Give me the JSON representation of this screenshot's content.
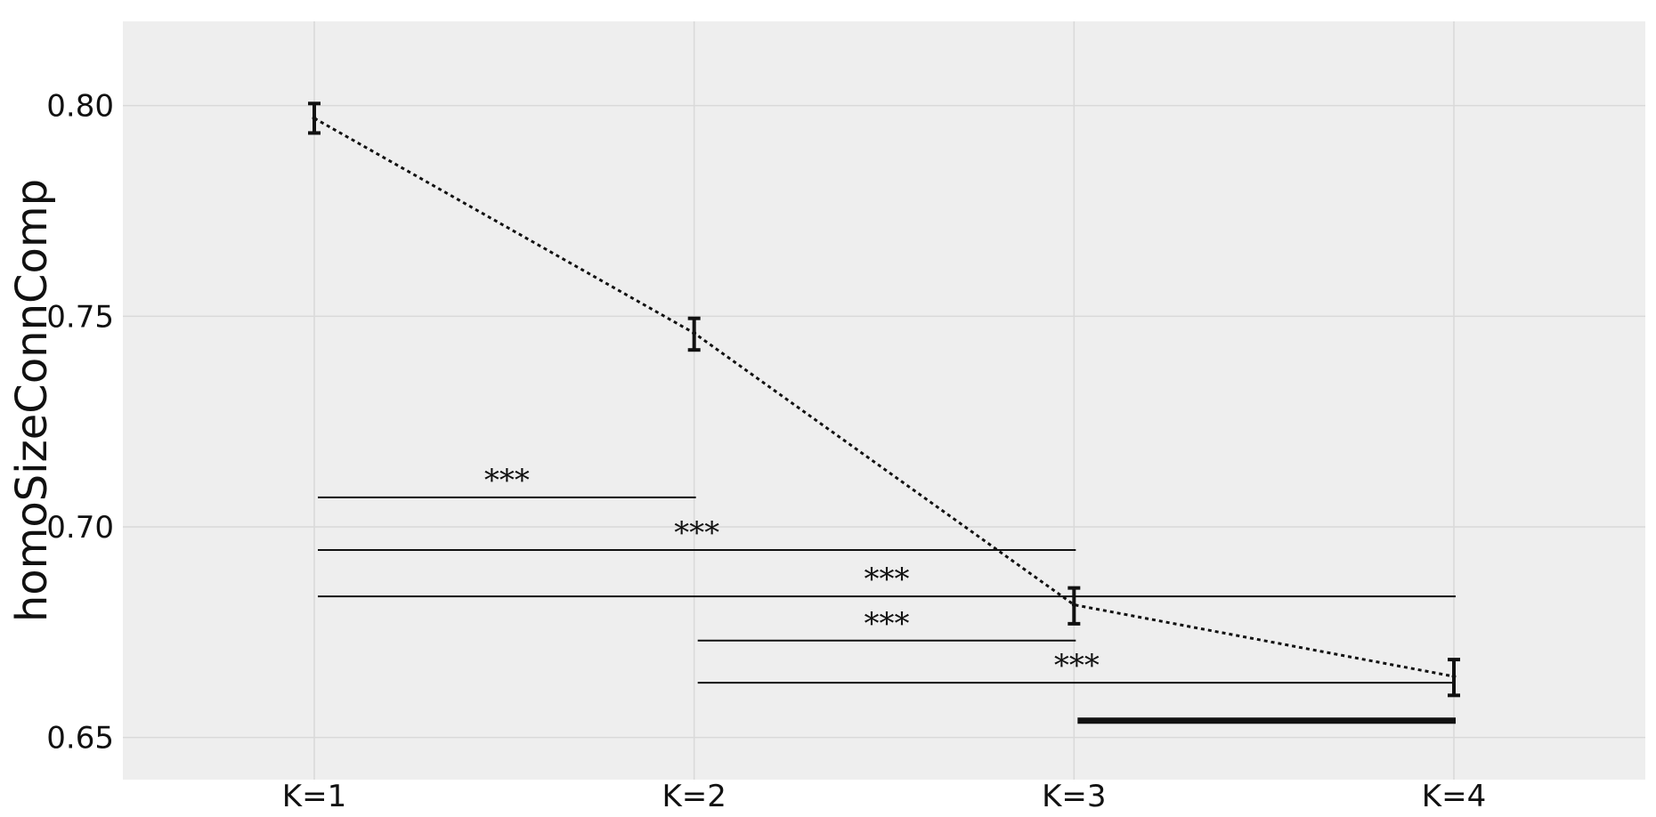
{
  "chart_data": {
    "type": "line",
    "ylabel": "homoSizeConnComp",
    "categories": [
      "K=1",
      "K=2",
      "K=3",
      "K=4"
    ],
    "ylim": [
      0.64,
      0.82
    ],
    "yticks": [
      0.65,
      0.7,
      0.75,
      0.8
    ],
    "ytick_labels": [
      "0.65",
      "0.70",
      "0.75",
      "0.80"
    ],
    "grid": true,
    "series": [
      {
        "values": [
          0.797,
          0.746,
          0.6815,
          0.6645
        ],
        "err_low": [
          0.7935,
          0.742,
          0.677,
          0.66
        ],
        "err_high": [
          0.8005,
          0.7495,
          0.6855,
          0.6685
        ],
        "line_style": "dotted",
        "color": "#111111"
      }
    ],
    "significance": [
      {
        "from": "K=1",
        "to": "K=2",
        "y": 0.707,
        "label": "***",
        "thick": false
      },
      {
        "from": "K=1",
        "to": "K=3",
        "y": 0.6945,
        "label": "***",
        "thick": false
      },
      {
        "from": "K=1",
        "to": "K=4",
        "y": 0.6835,
        "label": "***",
        "thick": false
      },
      {
        "from": "K=2",
        "to": "K=3",
        "y": 0.673,
        "label": "***",
        "thick": false
      },
      {
        "from": "K=2",
        "to": "K=4",
        "y": 0.663,
        "label": "***",
        "thick": false
      },
      {
        "from": "K=3",
        "to": "K=4",
        "y": 0.654,
        "label": "",
        "thick": true
      }
    ],
    "colors": {
      "plot_background": "#eeeeee",
      "grid": "#d9d9d9",
      "ink": "#111111"
    }
  }
}
